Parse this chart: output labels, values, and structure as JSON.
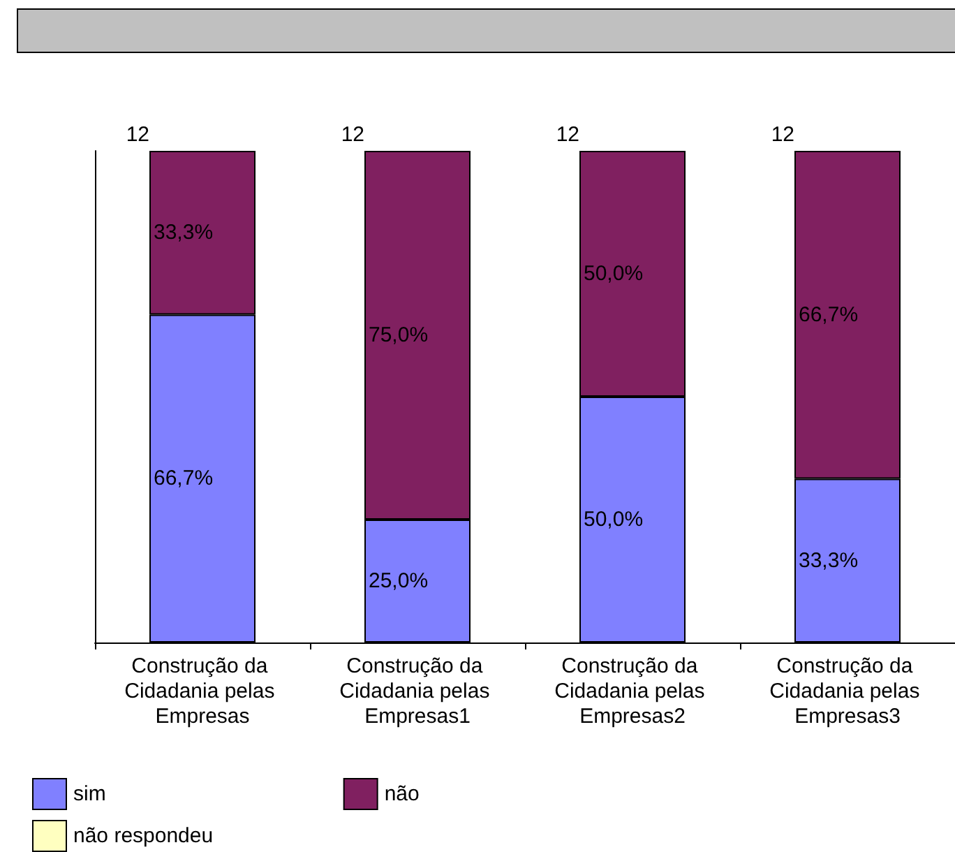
{
  "chart_data": {
    "type": "bar",
    "stacked": true,
    "categories": [
      "Construção da Cidadania pelas Empresas",
      "Construção da Cidadania pelas Empresas1",
      "Construção da Cidadania pelas Empresas2",
      "Construção da Cidadania pelas Empresas3"
    ],
    "series": [
      {
        "name": "sim",
        "color": "#8080ff",
        "values": [
          66.7,
          25.0,
          50.0,
          33.3
        ],
        "value_labels": [
          "66,7%",
          "25,0%",
          "50,0%",
          "33,3%"
        ]
      },
      {
        "name": "não",
        "color": "#802060",
        "values": [
          33.3,
          75.0,
          50.0,
          66.7
        ],
        "value_labels": [
          "33,3%",
          "75,0%",
          "50,0%",
          "66,7%"
        ]
      },
      {
        "name": "não respondeu",
        "color": "#ffffc0",
        "values": [
          null,
          null,
          null,
          null
        ]
      }
    ],
    "annotations": [
      {
        "text": "12",
        "x": "Construção da Cidadania pelas Empresas",
        "y": 100
      },
      {
        "text": "12",
        "x": "Construção da Cidadania pelas Empresas1",
        "y": 100
      },
      {
        "text": "12",
        "x": "Construção da Cidadania pelas Empresas2",
        "y": 100
      },
      {
        "text": "12",
        "x": "Construção da Cidadania pelas Empresas3",
        "y": 100
      }
    ],
    "legend": "bottom left",
    "grid": false
  }
}
